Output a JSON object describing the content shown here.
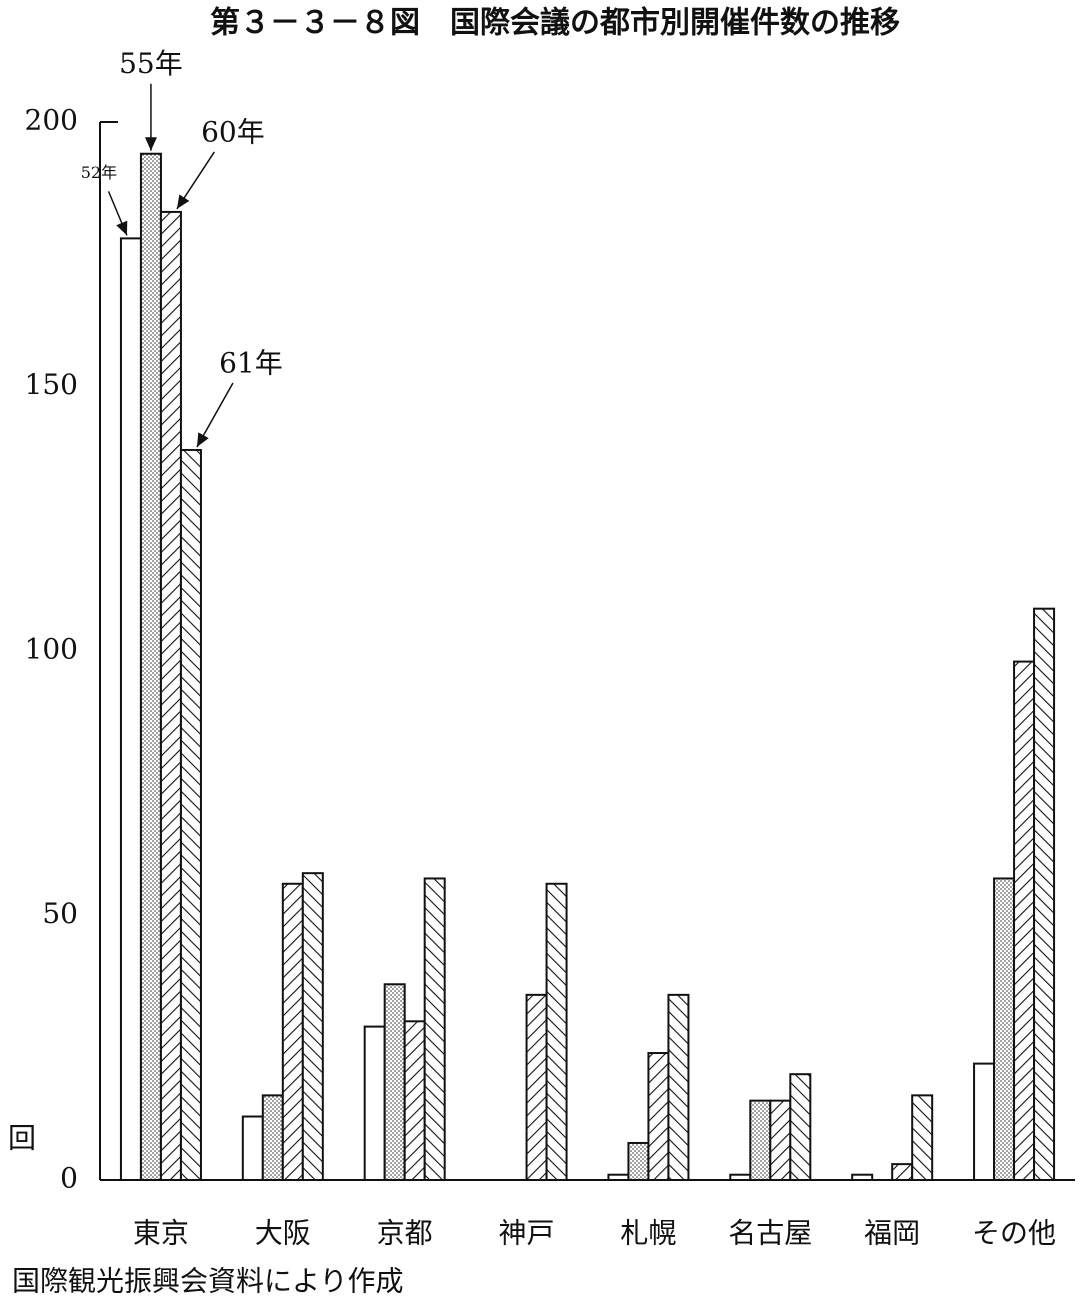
{
  "chart_data": {
    "type": "bar",
    "title": "第３－３－８図　国際会議の都市別開催件数の推移",
    "y_label": "回",
    "note": "国際観光振興会資料により作成",
    "categories": [
      "東京",
      "大阪",
      "京都",
      "神戸",
      "札幌",
      "名古屋",
      "福岡",
      "その他"
    ],
    "series": [
      {
        "name": "52年",
        "color": "#111111",
        "pattern": "none",
        "values": [
          178,
          12,
          29,
          0,
          1,
          1,
          1,
          22
        ]
      },
      {
        "name": "55年",
        "color": "#111111",
        "pattern": "dots",
        "values": [
          194,
          16,
          37,
          0,
          7,
          15,
          0,
          57
        ]
      },
      {
        "name": "60年",
        "color": "#111111",
        "pattern": "hatch-right",
        "values": [
          183,
          56,
          30,
          35,
          24,
          15,
          3,
          98
        ]
      },
      {
        "name": "61年",
        "color": "#111111",
        "pattern": "hatch-left",
        "values": [
          138,
          58,
          57,
          56,
          35,
          20,
          16,
          108
        ]
      }
    ],
    "ylim": [
      0,
      200
    ],
    "yticks": [
      0,
      50,
      100,
      150,
      200
    ],
    "grid": false
  }
}
